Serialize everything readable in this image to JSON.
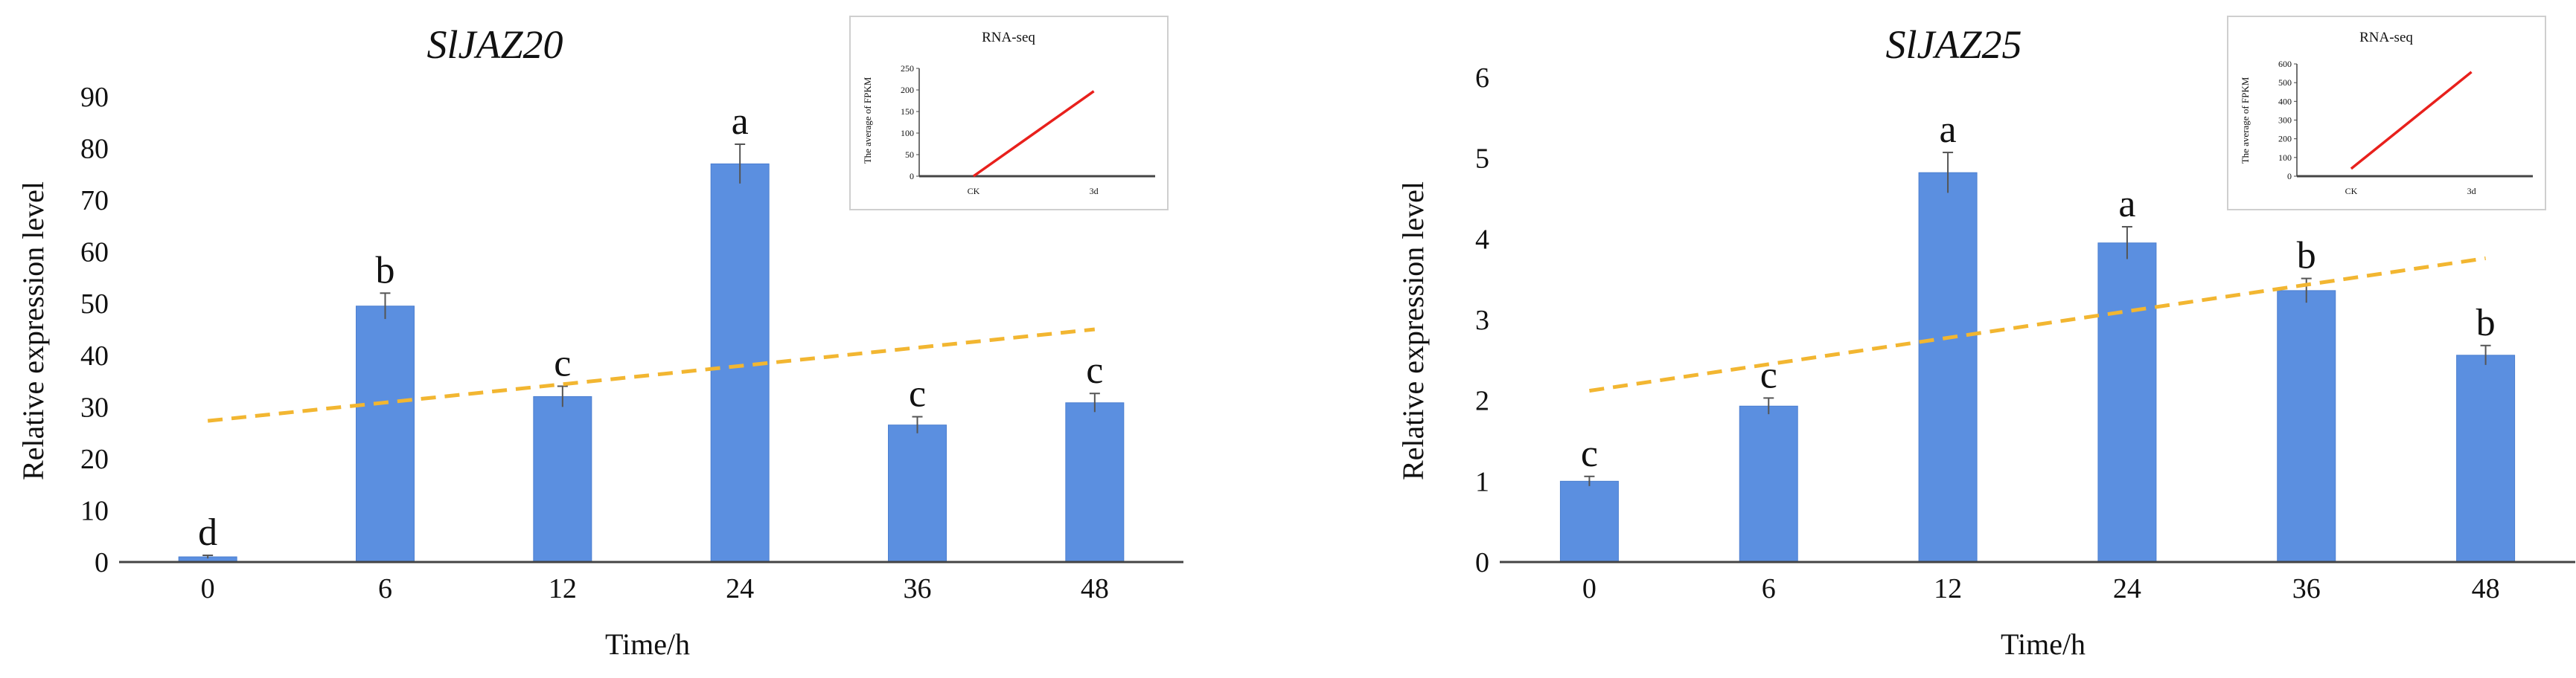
{
  "colors": {
    "bar": "#5b8fe0",
    "bar_edge": "#4c7fd0",
    "trend": "#f2b631",
    "inset_line": "#e8201c",
    "axis": "#444444",
    "inset_border": "#cfcfcf",
    "error_bar": "#555555"
  },
  "chart_data": [
    {
      "type": "bar",
      "title": "SlJAZ20",
      "xlabel": "Time/h",
      "ylabel": "Relative expression level",
      "categories": [
        "0",
        "6",
        "12",
        "24",
        "36",
        "48"
      ],
      "values": [
        1,
        49.5,
        32,
        77,
        26.5,
        30.8
      ],
      "errors": [
        0.3,
        2.5,
        2.0,
        3.8,
        1.6,
        1.8
      ],
      "letters": [
        "d",
        "b",
        "c",
        "a",
        "c",
        "c"
      ],
      "ylim": [
        0,
        90
      ],
      "yticks": [
        0,
        10,
        20,
        30,
        40,
        50,
        60,
        70,
        80,
        90
      ],
      "trendline": {
        "start": 27.3,
        "end": 45
      },
      "inset": {
        "type": "line",
        "title": "RNA-seq",
        "ylabel": "The average of FPKM",
        "categories": [
          "CK",
          "3d"
        ],
        "values": [
          0,
          197
        ],
        "ylim": [
          0,
          250
        ],
        "yticks": [
          0,
          50,
          100,
          150,
          200,
          250
        ]
      }
    },
    {
      "type": "bar",
      "title": "SlJAZ25",
      "xlabel": "Time/h",
      "ylabel": "Relative expression level",
      "categories": [
        "0",
        "6",
        "12",
        "24",
        "36",
        "48"
      ],
      "values": [
        1.0,
        1.93,
        4.82,
        3.95,
        3.36,
        2.56
      ],
      "errors": [
        0.06,
        0.1,
        0.25,
        0.2,
        0.15,
        0.12
      ],
      "letters": [
        "c",
        "c",
        "a",
        "a",
        "b",
        "b"
      ],
      "ylim": [
        0,
        6
      ],
      "yticks": [
        0,
        1,
        2,
        3,
        4,
        5,
        6
      ],
      "trendline": {
        "start": 2.12,
        "end": 3.76
      },
      "inset": {
        "type": "line",
        "title": "RNA-seq",
        "ylabel": "The average of FPKM",
        "categories": [
          "CK",
          "3d"
        ],
        "values": [
          40,
          557
        ],
        "ylim": [
          0,
          600
        ],
        "yticks": [
          0,
          100,
          200,
          300,
          400,
          500,
          600
        ]
      }
    }
  ]
}
